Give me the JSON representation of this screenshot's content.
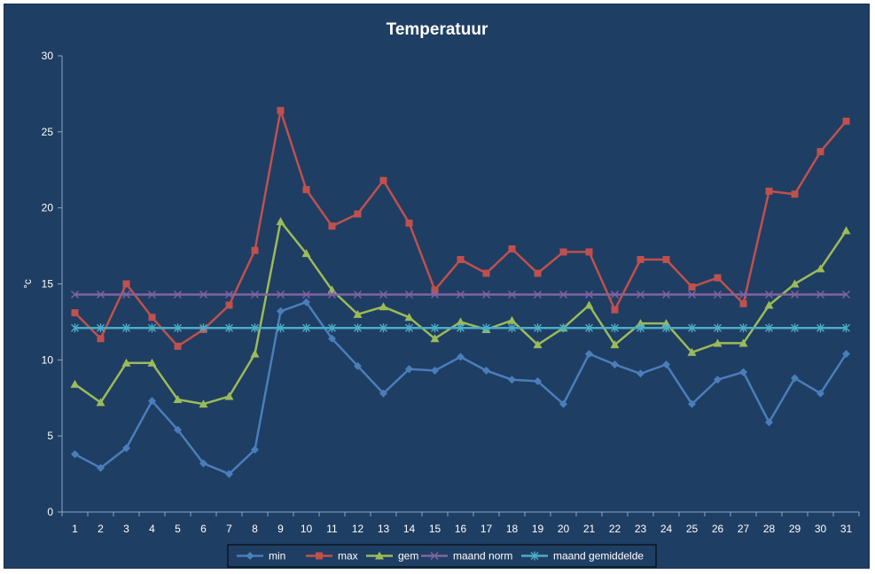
{
  "chart_data": {
    "type": "line",
    "title": "Temperatuur",
    "xlabel": "",
    "ylabel": "°c",
    "ylim": [
      0,
      30
    ],
    "yticks": [
      0,
      5,
      10,
      15,
      20,
      25,
      30
    ],
    "grid": false,
    "legend_position": "bottom",
    "categories": [
      "1",
      "2",
      "3",
      "4",
      "5",
      "6",
      "7",
      "8",
      "9",
      "10",
      "11",
      "12",
      "13",
      "14",
      "15",
      "16",
      "17",
      "18",
      "19",
      "20",
      "21",
      "22",
      "23",
      "24",
      "25",
      "26",
      "27",
      "28",
      "29",
      "30",
      "31"
    ],
    "series": [
      {
        "name": "min",
        "color": "#4a7ebb",
        "marker": "diamond",
        "values": [
          3.8,
          2.9,
          4.2,
          7.3,
          5.4,
          3.2,
          2.5,
          4.1,
          13.2,
          13.8,
          11.4,
          9.6,
          7.8,
          9.4,
          9.3,
          10.2,
          9.3,
          8.7,
          8.6,
          7.1,
          10.4,
          9.7,
          9.1,
          9.7,
          7.1,
          8.7,
          9.2,
          5.9,
          8.8,
          7.8,
          10.4
        ]
      },
      {
        "name": "max",
        "color": "#c0504d",
        "marker": "square",
        "values": [
          13.1,
          11.4,
          15.0,
          12.8,
          10.9,
          12.0,
          13.6,
          17.2,
          26.4,
          21.2,
          18.8,
          19.6,
          21.8,
          19.0,
          14.6,
          16.6,
          15.7,
          17.3,
          15.7,
          17.1,
          17.1,
          13.3,
          16.6,
          16.6,
          14.8,
          15.4,
          13.7,
          21.1,
          20.9,
          23.7,
          25.7
        ]
      },
      {
        "name": "gem",
        "color": "#9bbb59",
        "marker": "triangle",
        "values": [
          8.4,
          7.2,
          9.8,
          9.8,
          7.4,
          7.1,
          7.6,
          10.4,
          19.1,
          17.0,
          14.6,
          13.0,
          13.5,
          12.8,
          11.4,
          12.5,
          12.0,
          12.6,
          11.0,
          12.1,
          13.6,
          11.0,
          12.4,
          12.4,
          10.5,
          11.1,
          11.1,
          13.6,
          15.0,
          16.0,
          18.5
        ]
      },
      {
        "name": "maand norm",
        "color": "#8064a2",
        "marker": "x",
        "values": [
          14.3,
          14.3,
          14.3,
          14.3,
          14.3,
          14.3,
          14.3,
          14.3,
          14.3,
          14.3,
          14.3,
          14.3,
          14.3,
          14.3,
          14.3,
          14.3,
          14.3,
          14.3,
          14.3,
          14.3,
          14.3,
          14.3,
          14.3,
          14.3,
          14.3,
          14.3,
          14.3,
          14.3,
          14.3,
          14.3,
          14.3
        ]
      },
      {
        "name": "maand gemiddelde",
        "color": "#4bacc6",
        "marker": "star",
        "values": [
          12.1,
          12.1,
          12.1,
          12.1,
          12.1,
          12.1,
          12.1,
          12.1,
          12.1,
          12.1,
          12.1,
          12.1,
          12.1,
          12.1,
          12.1,
          12.1,
          12.1,
          12.1,
          12.1,
          12.1,
          12.1,
          12.1,
          12.1,
          12.1,
          12.1,
          12.1,
          12.1,
          12.1,
          12.1,
          12.1,
          12.1
        ]
      }
    ]
  }
}
